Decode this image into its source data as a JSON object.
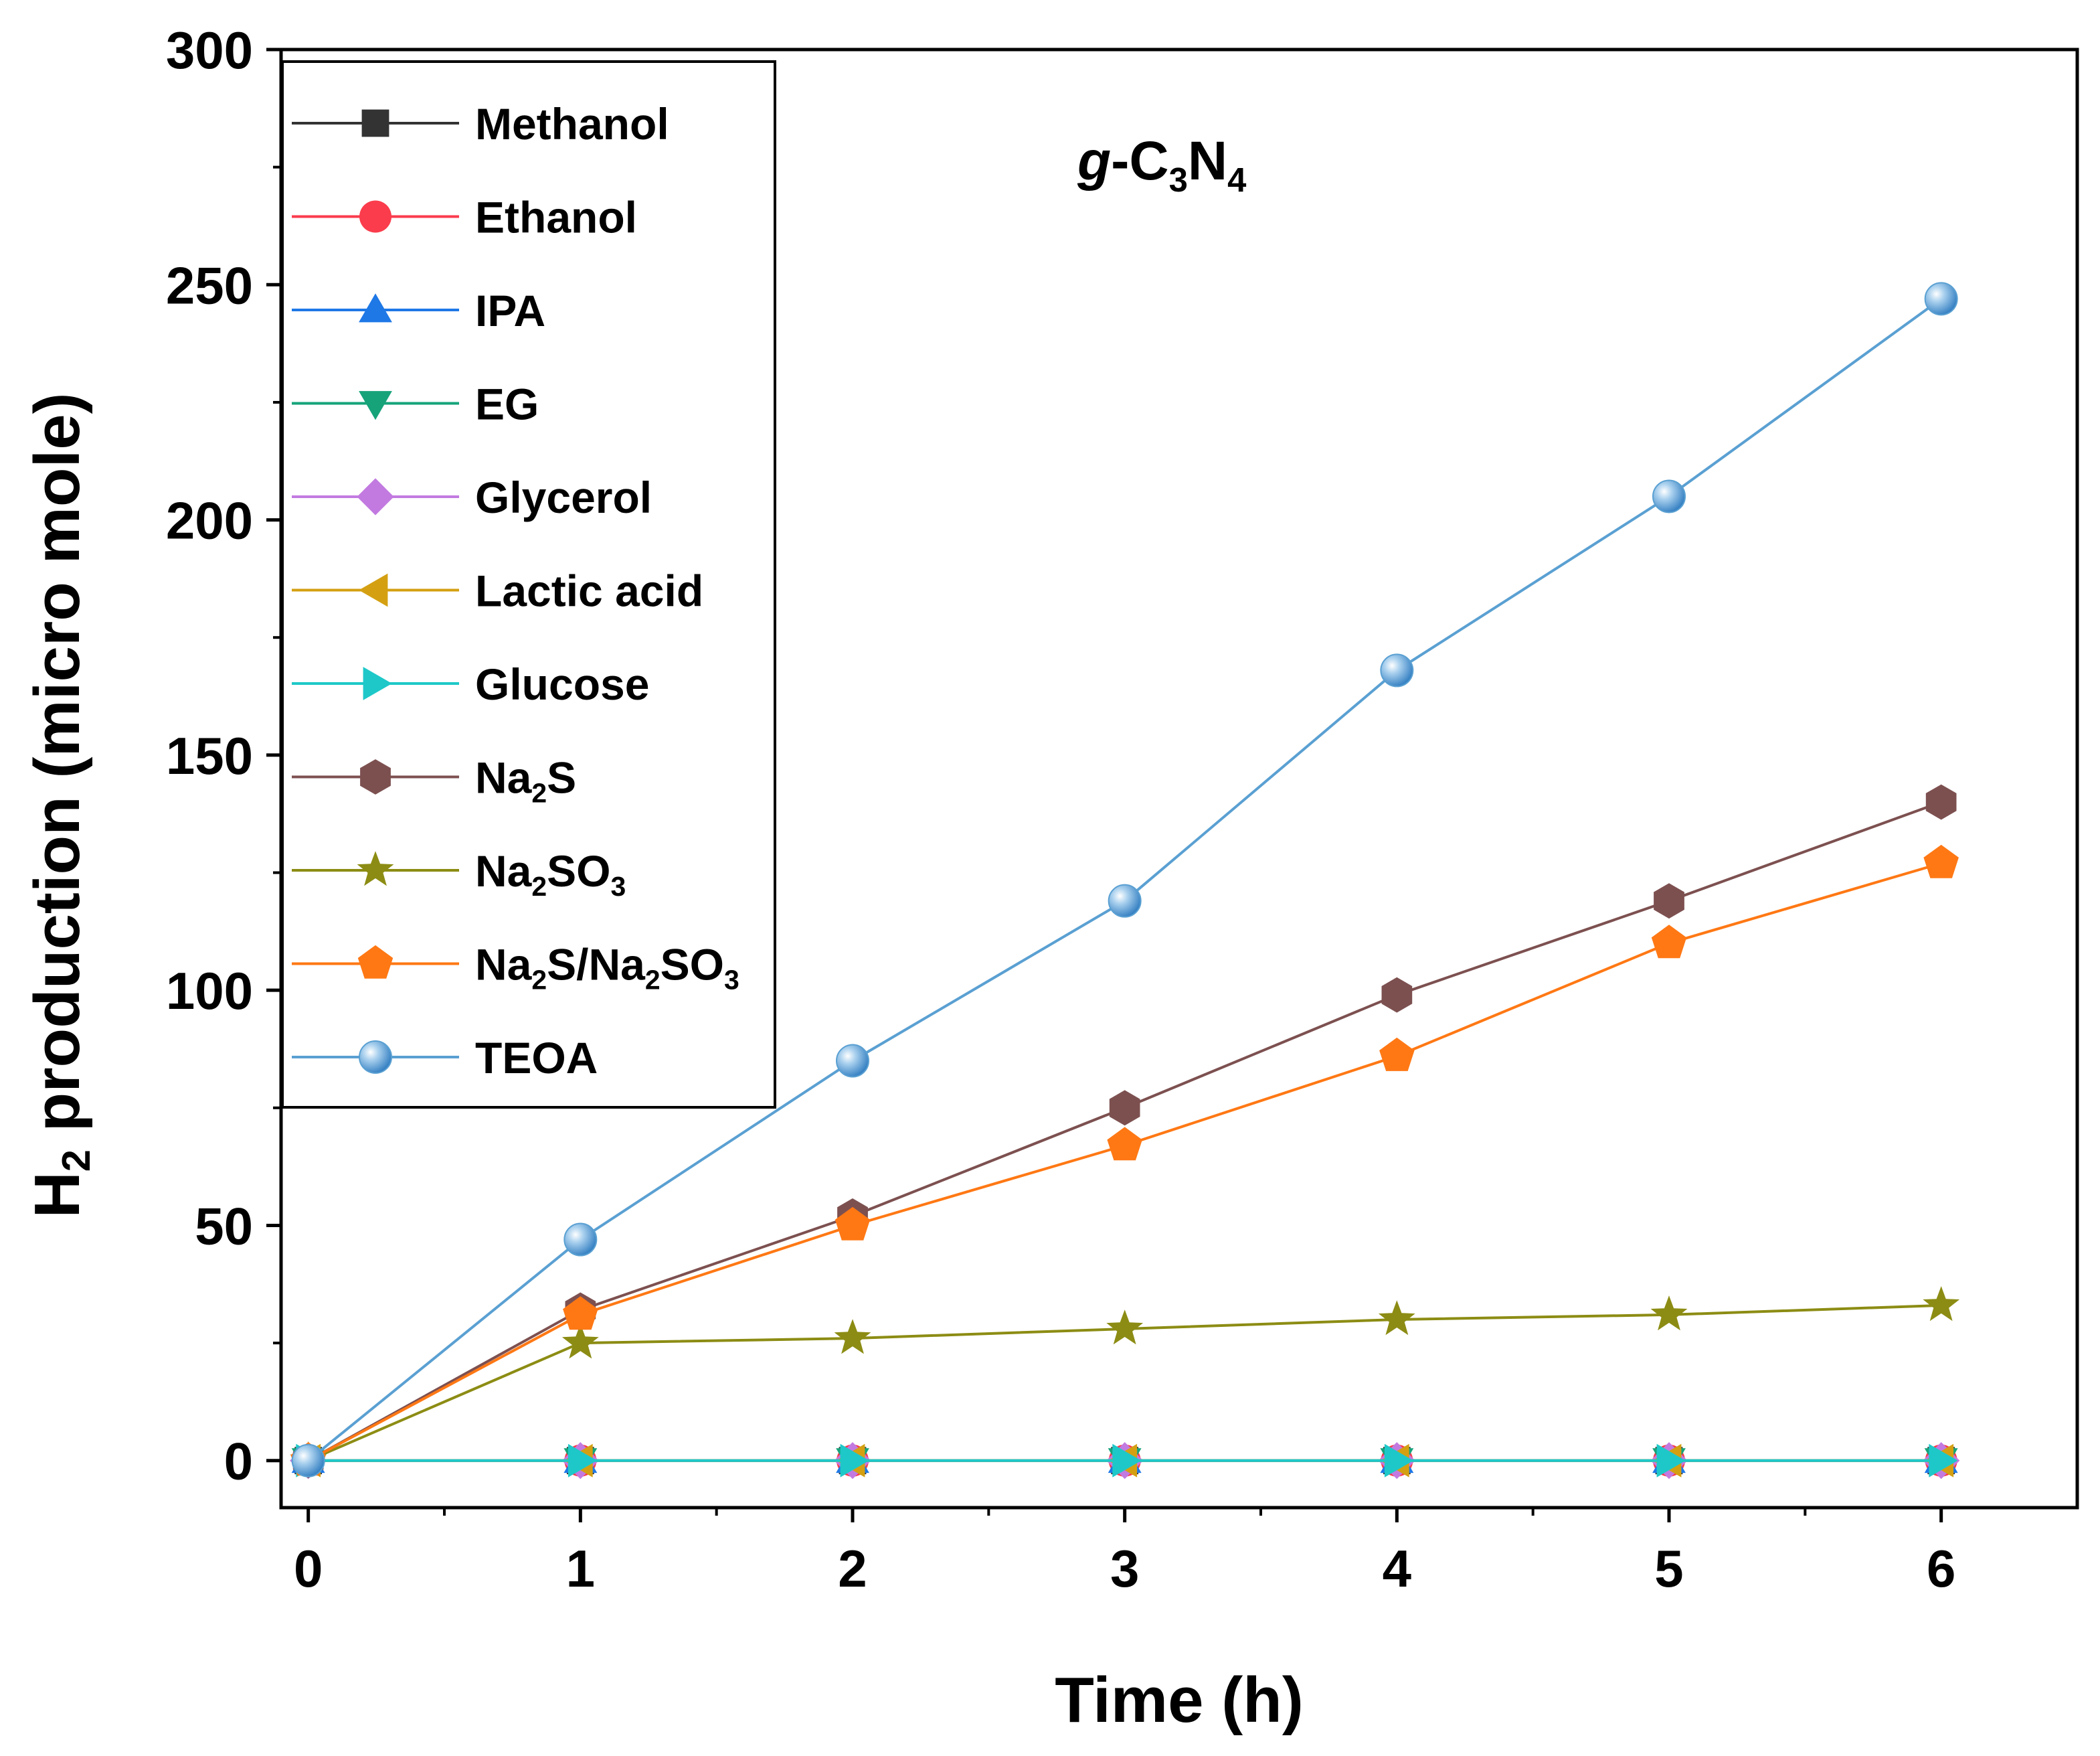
{
  "chart_data": {
    "type": "line",
    "title": "",
    "annotation": {
      "italic": "g",
      "text": "-C",
      "sub1": "3",
      "text2": "N",
      "sub2": "4"
    },
    "xlabel": "Time (h)",
    "ylabel": {
      "prefix": "H",
      "sub": "2",
      "rest": " production (micro mole)"
    },
    "xlim": [
      -0.1,
      6.5
    ],
    "ylim": [
      -10,
      300
    ],
    "x": [
      0,
      1,
      2,
      3,
      4,
      5,
      6
    ],
    "xticks": [
      "0",
      "1",
      "2",
      "3",
      "4",
      "5",
      "6"
    ],
    "yticks": [
      "0",
      "50",
      "100",
      "150",
      "200",
      "250",
      "300"
    ],
    "grid": false,
    "legend_position": "top-left",
    "series": [
      {
        "name": "Methanol",
        "label_parts": [
          [
            "Methanol",
            false
          ]
        ],
        "color": "#333333",
        "marker": "square",
        "values": [
          0,
          0,
          0,
          0,
          0,
          0,
          0
        ]
      },
      {
        "name": "Ethanol",
        "label_parts": [
          [
            "Ethanol",
            false
          ]
        ],
        "color": "#fa3c4c",
        "marker": "circle",
        "values": [
          0,
          0,
          0,
          0,
          0,
          0,
          0
        ]
      },
      {
        "name": "IPA",
        "label_parts": [
          [
            "IPA",
            false
          ]
        ],
        "color": "#1e78e6",
        "marker": "triangle-up",
        "values": [
          0,
          0,
          0,
          0,
          0,
          0,
          0
        ]
      },
      {
        "name": "EG",
        "label_parts": [
          [
            "EG",
            false
          ]
        ],
        "color": "#16a37a",
        "marker": "triangle-down",
        "values": [
          0,
          0,
          0,
          0,
          0,
          0,
          0
        ]
      },
      {
        "name": "Glycerol",
        "label_parts": [
          [
            "Glycerol",
            false
          ]
        ],
        "color": "#c27ae0",
        "marker": "diamond",
        "values": [
          0,
          0,
          0,
          0,
          0,
          0,
          0
        ]
      },
      {
        "name": "Lactic acid",
        "label_parts": [
          [
            "Lactic acid",
            false
          ]
        ],
        "color": "#d4a012",
        "marker": "triangle-left",
        "values": [
          0,
          0,
          0,
          0,
          0,
          0,
          0
        ]
      },
      {
        "name": "Glucose",
        "label_parts": [
          [
            "Glucose",
            false
          ]
        ],
        "color": "#1ec8c8",
        "marker": "triangle-right",
        "values": [
          0,
          0,
          0,
          0,
          0,
          0,
          0
        ]
      },
      {
        "name": "Na2S",
        "label_parts": [
          [
            "Na",
            false
          ],
          [
            "2",
            true
          ],
          [
            "S",
            false
          ]
        ],
        "color": "#7d5050",
        "marker": "hexagon",
        "values": [
          0,
          32,
          52,
          75,
          99,
          119,
          140
        ]
      },
      {
        "name": "Na2SO3",
        "label_parts": [
          [
            "Na",
            false
          ],
          [
            "2",
            true
          ],
          [
            "SO",
            false
          ],
          [
            "3",
            true
          ]
        ],
        "color": "#8c8c14",
        "marker": "star",
        "values": [
          0,
          25,
          26,
          28,
          30,
          31,
          33
        ]
      },
      {
        "name": "Na2S/Na2SO3",
        "label_parts": [
          [
            "Na",
            false
          ],
          [
            "2",
            true
          ],
          [
            "S/Na",
            false
          ],
          [
            "2",
            true
          ],
          [
            "SO",
            false
          ],
          [
            "3",
            true
          ]
        ],
        "color": "#ff7814",
        "marker": "pentagon",
        "values": [
          0,
          31,
          50,
          67,
          86,
          110,
          127
        ]
      },
      {
        "name": "TEOA",
        "label_parts": [
          [
            "TEOA",
            false
          ]
        ],
        "color": "#5aa0d2",
        "marker": "sphere",
        "values": [
          0,
          47,
          85,
          119,
          168,
          205,
          247
        ]
      }
    ]
  }
}
